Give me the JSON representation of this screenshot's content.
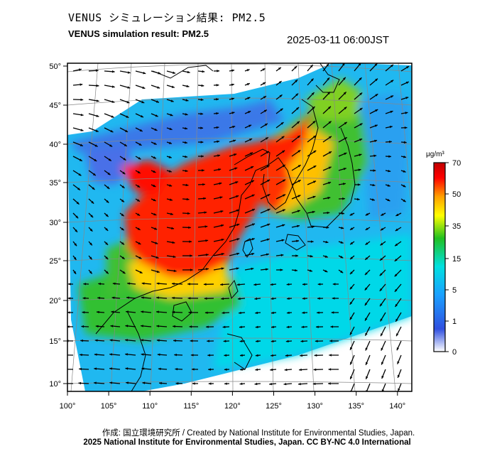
{
  "header": {
    "title_jp": "VENUS シミュレーション結果: PM2.5",
    "title_en": "VENUS simulation result: PM2.5",
    "timestamp": "2025-03-11 06:00JST"
  },
  "map": {
    "lon_ticks": [
      "100°",
      "105°",
      "110°",
      "115°",
      "120°",
      "125°",
      "130°",
      "135°",
      "140°"
    ],
    "lat_ticks": [
      "50°",
      "45°",
      "40°",
      "35°",
      "30°",
      "25°",
      "20°",
      "15°",
      "10°"
    ]
  },
  "colorbar": {
    "unit": "μg/m³",
    "ticks": [
      "70",
      "50",
      "35",
      "15",
      "5",
      "1",
      "0"
    ],
    "colors": [
      "#ffffff",
      "#3050e0",
      "#1aa0ff",
      "#00e0e0",
      "#20c020",
      "#ffff00",
      "#ffa000",
      "#ff0000",
      "#c00000"
    ]
  },
  "footer": {
    "credit": "作成: 国立環境研究所 / Created by National Institute for Environmental Studies, Japan.",
    "license": "2025 National Institute for Environmental Studies, Japan. CC BY-NC 4.0 International"
  }
}
